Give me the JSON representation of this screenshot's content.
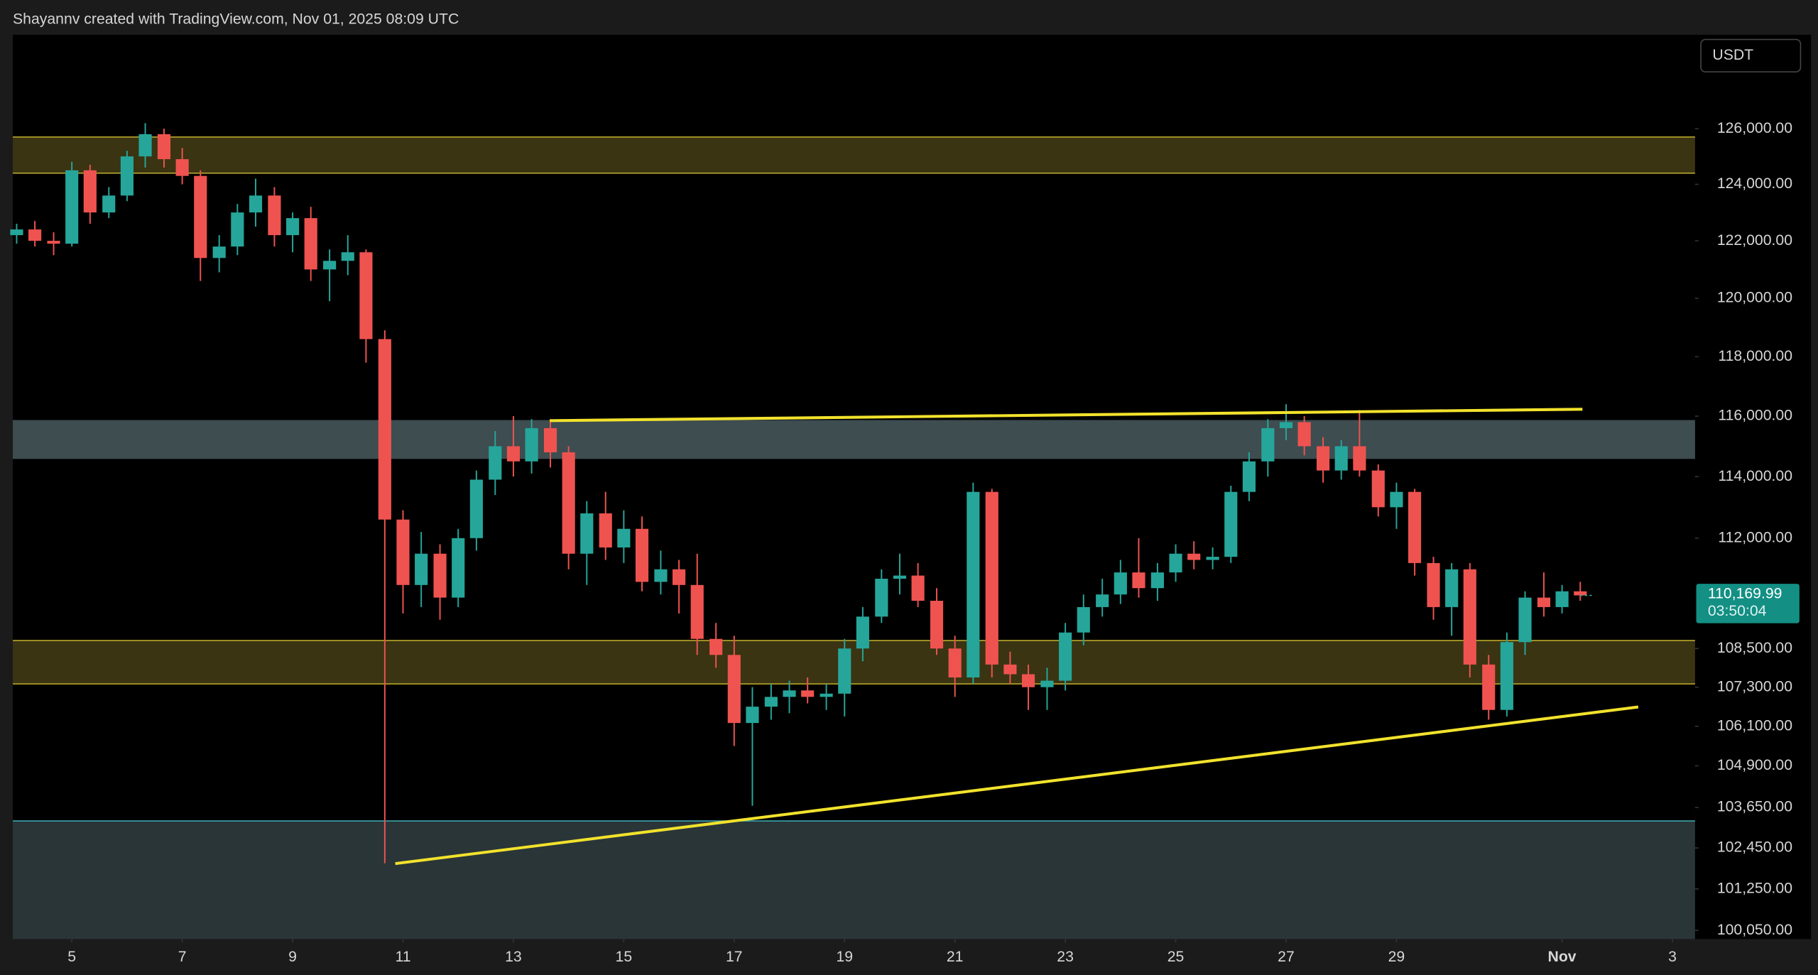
{
  "header": {
    "text": "Shayannv created with TradingView.com, Nov 01, 2025 08:09 UTC"
  },
  "currency": "USDT",
  "chart_data": {
    "type": "candlestick",
    "log_scale": true,
    "grid": false,
    "up_color": "#26a69a",
    "down_color": "#ef5350",
    "x": [
      4,
      4.33,
      4.67,
      5,
      5.33,
      5.67,
      6,
      6.33,
      6.67,
      7,
      7.33,
      7.67,
      8,
      8.33,
      8.67,
      9,
      9.33,
      9.67,
      10,
      10.33,
      10.67,
      11,
      11.33,
      11.67,
      12,
      12.33,
      12.67,
      13,
      13.33,
      13.67,
      14,
      14.33,
      14.67,
      15,
      15.33,
      15.67,
      16,
      16.33,
      16.67,
      17,
      17.33,
      17.67,
      18,
      18.33,
      18.67,
      19,
      19.33,
      19.67,
      20,
      20.33,
      20.67,
      21,
      21.33,
      21.67,
      22,
      22.33,
      22.67,
      23,
      23.33,
      23.67,
      24,
      24.33,
      24.67,
      25,
      25.33,
      25.67,
      26,
      26.33,
      26.67,
      27,
      27.33,
      27.67,
      28,
      28.33,
      28.67,
      29,
      29.33,
      29.67,
      30,
      30.33,
      30.67,
      31,
      31.33,
      31.67,
      32,
      32.33
    ],
    "open": [
      122200,
      122400,
      122000,
      121900,
      124500,
      123000,
      123600,
      125000,
      125800,
      124900,
      124300,
      121400,
      121800,
      123000,
      123600,
      122200,
      122800,
      121000,
      121300,
      121600,
      118600,
      112600,
      110500,
      111500,
      110100,
      112000,
      113900,
      115000,
      114500,
      115600,
      114800,
      111500,
      112800,
      111700,
      112300,
      110600,
      111000,
      110500,
      108800,
      108300,
      106200,
      106700,
      107000,
      107200,
      107000,
      107100,
      108500,
      109500,
      110700,
      110800,
      110000,
      108500,
      107600,
      113500,
      108000,
      107700,
      107300,
      107500,
      109000,
      109800,
      110200,
      110900,
      110400,
      110900,
      111500,
      111300,
      111400,
      113500,
      114500,
      115600,
      115800,
      115000,
      114200,
      115000,
      114200,
      113000,
      113500,
      111200,
      109800,
      111000,
      108000,
      106600,
      108700,
      110100,
      109800,
      110300
    ],
    "high": [
      122600,
      122700,
      122300,
      124800,
      124700,
      123900,
      125200,
      126200,
      126000,
      125300,
      124500,
      122200,
      123300,
      124200,
      123900,
      123000,
      123200,
      121700,
      122200,
      121700,
      118900,
      112900,
      112200,
      111800,
      112300,
      114200,
      115500,
      116000,
      115900,
      115900,
      115000,
      113200,
      113500,
      112900,
      112700,
      111600,
      111300,
      111500,
      109300,
      108900,
      107300,
      107400,
      107500,
      107600,
      107400,
      108800,
      109800,
      111000,
      111500,
      111200,
      110400,
      108900,
      113800,
      113600,
      108400,
      108000,
      107900,
      109300,
      110200,
      110700,
      111300,
      112000,
      111200,
      111800,
      111900,
      111700,
      113700,
      114800,
      115900,
      116400,
      116000,
      115300,
      115200,
      116200,
      114400,
      113800,
      113600,
      111400,
      111200,
      111200,
      108300,
      109000,
      110300,
      110900,
      110500,
      110600
    ],
    "low": [
      121900,
      121800,
      121500,
      121800,
      122600,
      122800,
      123400,
      124600,
      124600,
      124000,
      120600,
      120900,
      121500,
      122500,
      121800,
      121600,
      120600,
      119900,
      120800,
      117800,
      102000,
      109600,
      109800,
      109400,
      109800,
      111600,
      113400,
      114000,
      114100,
      114300,
      111000,
      110500,
      111300,
      111200,
      110300,
      110200,
      109600,
      108300,
      107900,
      105500,
      103700,
      106300,
      106500,
      106800,
      106600,
      106400,
      108100,
      109300,
      110200,
      109800,
      108300,
      107000,
      107400,
      107600,
      107400,
      106600,
      106600,
      107200,
      108600,
      109500,
      109900,
      110100,
      110000,
      110600,
      111000,
      111000,
      111200,
      113200,
      114000,
      115200,
      114700,
      113800,
      113900,
      114000,
      112700,
      112300,
      110800,
      109400,
      108900,
      107600,
      106300,
      106400,
      108300,
      109500,
      109600,
      110000
    ],
    "close": [
      122400,
      122000,
      121900,
      124500,
      123000,
      123600,
      125000,
      125800,
      124900,
      124300,
      121400,
      121800,
      123000,
      123600,
      122200,
      122800,
      121000,
      121300,
      121600,
      118600,
      112600,
      110500,
      111500,
      110100,
      112000,
      113900,
      115000,
      114500,
      115600,
      114800,
      111500,
      112800,
      111700,
      112300,
      110600,
      111000,
      110500,
      108800,
      108300,
      106200,
      106700,
      107000,
      107200,
      107000,
      107100,
      108500,
      109500,
      110700,
      110800,
      110000,
      108500,
      107600,
      113500,
      108000,
      107700,
      107300,
      107500,
      109000,
      109800,
      110200,
      110900,
      110400,
      110900,
      111500,
      111300,
      111400,
      113500,
      114500,
      115600,
      115800,
      115000,
      114200,
      115000,
      114200,
      113000,
      113500,
      111200,
      109800,
      111000,
      108000,
      106600,
      108700,
      110100,
      109800,
      110300,
      110169.99
    ],
    "last_price": {
      "value": 110169.99,
      "label": "110,169.99"
    },
    "countdown": "03:50:04",
    "zones": [
      {
        "range": [
          124400,
          125700
        ],
        "color": "#3a3412",
        "border": "#b8a52a"
      },
      {
        "range": [
          114600,
          115850
        ],
        "color": "#3e4d50",
        "border": "#3e4d50"
      },
      {
        "range": [
          107400,
          108750
        ],
        "color": "#3a3412",
        "border": "#b8a52a"
      },
      {
        "range": [
          99800,
          103250
        ],
        "color": "#2a3538",
        "border": "#3aa6ad"
      }
    ],
    "trendlines": [
      {
        "x": [
          13.66,
          32.37
        ],
        "y": [
          115850,
          116230
        ],
        "color": "#f2e22c"
      },
      {
        "x": [
          10.86,
          33.38
        ],
        "y": [
          101990,
          106690
        ],
        "color": "#f2e22c"
      }
    ],
    "xlim": [
      3.93,
      34.41
    ],
    "xticks": [
      5,
      7,
      9,
      11,
      13,
      15,
      17,
      19,
      21,
      23,
      25,
      27,
      29,
      {
        "value": 32,
        "label": "Nov"
      },
      {
        "value": 34,
        "label": "3"
      }
    ],
    "ylim": [
      99800,
      129450
    ],
    "yticks": [
      {
        "value": 126000,
        "label": "126,000.00"
      },
      {
        "value": 124000,
        "label": "124,000.00"
      },
      {
        "value": 122000,
        "label": "122,000.00"
      },
      {
        "value": 120000,
        "label": "120,000.00"
      },
      {
        "value": 118000,
        "label": "118,000.00"
      },
      {
        "value": 116000,
        "label": "116,000.00"
      },
      {
        "value": 114000,
        "label": "114,000.00"
      },
      {
        "value": 112000,
        "label": "112,000.00"
      },
      {
        "value": 108500,
        "label": "108,500.00"
      },
      {
        "value": 107300,
        "label": "107,300.00"
      },
      {
        "value": 106100,
        "label": "106,100.00"
      },
      {
        "value": 104900,
        "label": "104,900.00"
      },
      {
        "value": 103650,
        "label": "103,650.00"
      },
      {
        "value": 102450,
        "label": "102,450.00"
      },
      {
        "value": 101250,
        "label": "101,250.00"
      },
      {
        "value": 100050,
        "label": "100,050.00"
      }
    ]
  }
}
